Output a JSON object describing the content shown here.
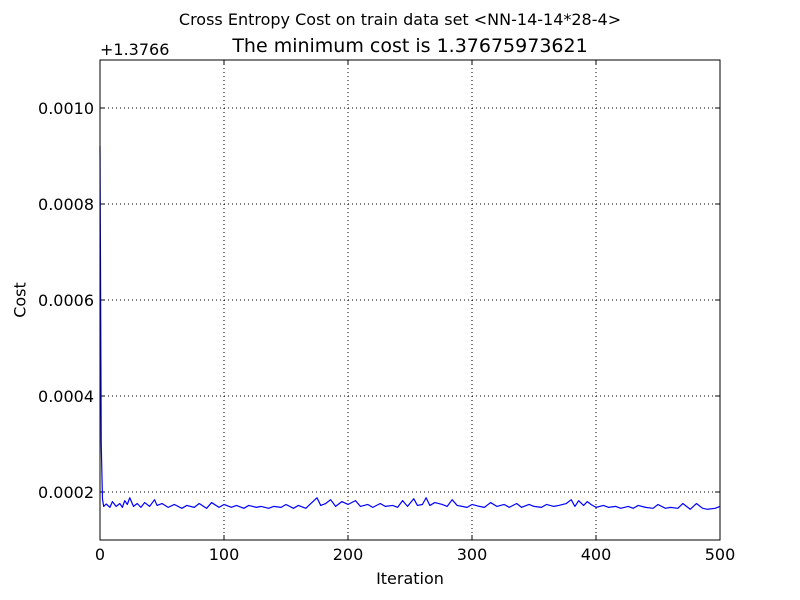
{
  "chart_data": {
    "type": "line",
    "suptitle": "Cross Entropy Cost on train data set <NN-14-14*28-4>",
    "title": "The minimum cost is 1.37675973621",
    "xlabel": "Iteration",
    "ylabel": "Cost",
    "y_offset_label": "+1.3766",
    "y_offset": 1.3766,
    "xlim": [
      0,
      500
    ],
    "ylim": [
      0.0001,
      0.0011
    ],
    "xticks": [
      0,
      100,
      200,
      300,
      400,
      500
    ],
    "xtick_labels": [
      "0",
      "100",
      "200",
      "300",
      "400",
      "500"
    ],
    "yticks": [
      0.0002,
      0.0004,
      0.0006,
      0.0008,
      0.001
    ],
    "ytick_labels": [
      "0.0002",
      "0.0004",
      "0.0006",
      "0.0008",
      "0.0010"
    ],
    "grid": true,
    "line_color": "#0000ff",
    "series": [
      {
        "name": "cost",
        "x": [
          0,
          1,
          2,
          3,
          5,
          8,
          10,
          13,
          16,
          18,
          20,
          22,
          24,
          27,
          30,
          33,
          36,
          40,
          44,
          46,
          50,
          55,
          60,
          66,
          70,
          76,
          80,
          86,
          90,
          96,
          100,
          106,
          110,
          116,
          120,
          126,
          130,
          136,
          140,
          146,
          150,
          156,
          160,
          166,
          170,
          175,
          178,
          182,
          186,
          190,
          195,
          200,
          206,
          210,
          216,
          220,
          226,
          230,
          236,
          240,
          244,
          248,
          253,
          256,
          260,
          263,
          266,
          270,
          276,
          280,
          284,
          288,
          292,
          296,
          300,
          306,
          310,
          315,
          320,
          326,
          330,
          336,
          340,
          346,
          350,
          356,
          360,
          366,
          370,
          376,
          380,
          383,
          386,
          390,
          393,
          396,
          400,
          406,
          410,
          416,
          420,
          426,
          430,
          434,
          440,
          446,
          450,
          456,
          460,
          466,
          470,
          476,
          481,
          486,
          490,
          496,
          500
        ],
        "y": [
          0.00092,
          0.0003,
          0.000185,
          0.00017,
          0.000175,
          0.000168,
          0.00018,
          0.00017,
          0.000176,
          0.000168,
          0.000182,
          0.000174,
          0.000188,
          0.00017,
          0.000176,
          0.000168,
          0.000178,
          0.00017,
          0.000184,
          0.000172,
          0.000176,
          0.000168,
          0.000174,
          0.000166,
          0.000172,
          0.000168,
          0.000176,
          0.000166,
          0.000178,
          0.000168,
          0.000174,
          0.000168,
          0.000172,
          0.000166,
          0.000172,
          0.000168,
          0.00017,
          0.000166,
          0.00017,
          0.000168,
          0.000174,
          0.000166,
          0.000172,
          0.000166,
          0.000176,
          0.000188,
          0.000172,
          0.000176,
          0.000184,
          0.00017,
          0.00018,
          0.000174,
          0.000182,
          0.00017,
          0.000174,
          0.000168,
          0.000176,
          0.00017,
          0.000172,
          0.000168,
          0.000182,
          0.00017,
          0.000186,
          0.000172,
          0.000174,
          0.000188,
          0.000172,
          0.000178,
          0.000174,
          0.00017,
          0.000184,
          0.000172,
          0.00017,
          0.000168,
          0.000174,
          0.00017,
          0.000168,
          0.000178,
          0.00017,
          0.000174,
          0.000168,
          0.000176,
          0.000168,
          0.000174,
          0.00017,
          0.000168,
          0.000174,
          0.00017,
          0.000172,
          0.000176,
          0.000184,
          0.00017,
          0.000182,
          0.000172,
          0.00018,
          0.000174,
          0.000168,
          0.000172,
          0.000168,
          0.00017,
          0.000166,
          0.00017,
          0.000166,
          0.000172,
          0.000168,
          0.000166,
          0.000174,
          0.000166,
          0.000168,
          0.000166,
          0.000176,
          0.000164,
          0.000176,
          0.000166,
          0.000164,
          0.000166,
          0.00017
        ]
      }
    ]
  }
}
